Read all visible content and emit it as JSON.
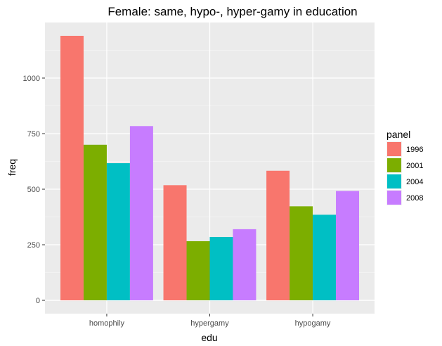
{
  "chart_data": {
    "type": "bar",
    "title": "Female: same, hypo-, hyper-gamy in education",
    "xlabel": "edu",
    "ylabel": "freq",
    "categories": [
      "homophily",
      "hypergamy",
      "hypogamy"
    ],
    "series": [
      {
        "name": "1996",
        "color": "#F8766D",
        "values": [
          1190,
          518,
          583
        ]
      },
      {
        "name": "2001",
        "color": "#7CAE00",
        "values": [
          700,
          266,
          423
        ]
      },
      {
        "name": "2004",
        "color": "#00BFC4",
        "values": [
          617,
          285,
          385
        ]
      },
      {
        "name": "2008",
        "color": "#C77CFF",
        "values": [
          784,
          320,
          492
        ]
      }
    ],
    "yticks": [
      0,
      250,
      500,
      750,
      1000
    ],
    "ylim": [
      -60,
      1250
    ],
    "grid": true,
    "legend": {
      "title": "panel",
      "position": "right"
    },
    "colors": {
      "panel_background": "#EBEBEB",
      "grid_major": "#FFFFFF",
      "grid_minor": "#F5F5F5"
    }
  }
}
